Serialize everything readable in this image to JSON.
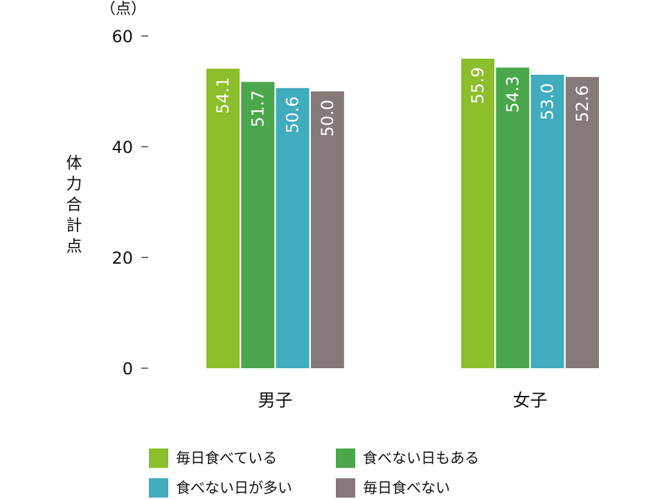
{
  "chart_data": {
    "type": "bar",
    "title": "",
    "unit_label": "（点）",
    "ylabel": "体力合計点",
    "xlabel": "",
    "ylim": [
      0,
      60
    ],
    "yticks": [
      0,
      20,
      40,
      60
    ],
    "categories": [
      "男子",
      "女子"
    ],
    "series": [
      {
        "name": "毎日食べている",
        "color": "#8bbf2c",
        "values": [
          54.1,
          55.9
        ]
      },
      {
        "name": "食べない日もある",
        "color": "#4aa74b",
        "values": [
          51.7,
          54.3
        ]
      },
      {
        "name": "食べない日が多い",
        "color": "#41acbd",
        "values": [
          50.6,
          53.0
        ]
      },
      {
        "name": "毎日食べない",
        "color": "#857a7a",
        "values": [
          50.0,
          52.6
        ]
      }
    ],
    "data_labels": [
      [
        "54.1",
        "55.9"
      ],
      [
        "51.7",
        "54.3"
      ],
      [
        "50.6",
        "53.0"
      ],
      [
        "50.0",
        "52.6"
      ]
    ],
    "grid": false,
    "legend_position": "bottom"
  }
}
